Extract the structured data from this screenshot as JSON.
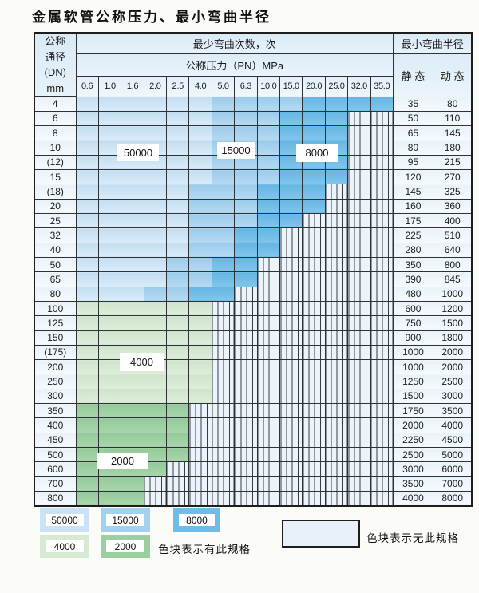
{
  "title": "金属软管公称压力、最小弯曲半径",
  "colors": {
    "blue_light": "#cbe2f4",
    "blue_mid": "#a2d1ef",
    "blue_dark": "#6ebce7",
    "green_light": "#d6e9d2",
    "green_mid": "#9ccf9f",
    "hatch_bg": "#ecf4fb",
    "page_bg": "#fbfcf8"
  },
  "table": {
    "header": {
      "dn_line1": "公称",
      "dn_line2": "通径",
      "dn_line3": "(DN)",
      "dn_line4": "mm",
      "cycles_label": "最少弯曲次数，次",
      "pressure_label": "公称压力（PN）MPa",
      "pressure_values": [
        "0.6",
        "1.0",
        "1.6",
        "2.0",
        "2.5",
        "4.0",
        "5.0",
        "6.3",
        "10.0",
        "15.0",
        "20.0",
        "25.0",
        "32.0",
        "35.0"
      ],
      "radius_label": "最小弯曲半径",
      "static_label": "静 态",
      "dynamic_label": "动 态"
    },
    "cell_codes": {
      "l": "50000",
      "m": "15000",
      "d": "8000",
      "g": "4000",
      "G": "2000",
      "x": "no-spec"
    },
    "rows": [
      {
        "dn": "4",
        "cells": "llllllmmmmdddd",
        "static": "35",
        "dynamic": "80"
      },
      {
        "dn": "6",
        "cells": "llllllmmmdddxx",
        "static": "50",
        "dynamic": "110"
      },
      {
        "dn": "8",
        "cells": "llllllmmmdddxx",
        "static": "65",
        "dynamic": "145"
      },
      {
        "dn": "10",
        "cells": "llllllmmmdddxx",
        "static": "80",
        "dynamic": "180"
      },
      {
        "dn": "(12)",
        "cells": "llllllmmmdddxx",
        "static": "95",
        "dynamic": "215"
      },
      {
        "dn": "15",
        "cells": "llllllmmmdddxx",
        "static": "120",
        "dynamic": "270"
      },
      {
        "dn": "(18)",
        "cells": "lllllmmmdddxxx",
        "static": "145",
        "dynamic": "325"
      },
      {
        "dn": "20",
        "cells": "lllllmmmdddxxx",
        "static": "160",
        "dynamic": "360"
      },
      {
        "dn": "25",
        "cells": "lllllmmmddxxxx",
        "static": "175",
        "dynamic": "400"
      },
      {
        "dn": "32",
        "cells": "lllllmmddxxxxx",
        "static": "225",
        "dynamic": "510"
      },
      {
        "dn": "40",
        "cells": "lllllmmddxxxxx",
        "static": "280",
        "dynamic": "640"
      },
      {
        "dn": "50",
        "cells": "llllmmddxxxxxx",
        "static": "350",
        "dynamic": "800"
      },
      {
        "dn": "65",
        "cells": "llllmmddxxxxxx",
        "static": "390",
        "dynamic": "845"
      },
      {
        "dn": "80",
        "cells": "lllmmddxxxxxxx",
        "static": "480",
        "dynamic": "1000"
      },
      {
        "dn": "100",
        "cells": "ggggggxxxxxxxx",
        "static": "600",
        "dynamic": "1200"
      },
      {
        "dn": "125",
        "cells": "ggggggxxxxxxxx",
        "static": "750",
        "dynamic": "1500"
      },
      {
        "dn": "150",
        "cells": "ggggggxxxxxxxx",
        "static": "900",
        "dynamic": "1800"
      },
      {
        "dn": "(175)",
        "cells": "ggggggxxxxxxxx",
        "static": "1000",
        "dynamic": "2000"
      },
      {
        "dn": "200",
        "cells": "ggggggxxxxxxxx",
        "static": "1000",
        "dynamic": "2000"
      },
      {
        "dn": "250",
        "cells": "ggggggxxxxxxxx",
        "static": "1250",
        "dynamic": "2500"
      },
      {
        "dn": "300",
        "cells": "ggggggxxxxxxxx",
        "static": "1500",
        "dynamic": "3000"
      },
      {
        "dn": "350",
        "cells": "GGGGGxxxxxxxxx",
        "static": "1750",
        "dynamic": "3500"
      },
      {
        "dn": "400",
        "cells": "GGGGGxxxxxxxxx",
        "static": "2000",
        "dynamic": "4000"
      },
      {
        "dn": "450",
        "cells": "GGGGGxxxxxxxxx",
        "static": "2250",
        "dynamic": "4500"
      },
      {
        "dn": "500",
        "cells": "GGGGGxxxxxxxxx",
        "static": "2500",
        "dynamic": "5000"
      },
      {
        "dn": "600",
        "cells": "GGGGxxxxxxxxxx",
        "static": "3000",
        "dynamic": "6000"
      },
      {
        "dn": "700",
        "cells": "GGGxxxxxxxxxxx",
        "static": "3500",
        "dynamic": "7000"
      },
      {
        "dn": "800",
        "cells": "GGGxxxxxxxxxxx",
        "static": "4000",
        "dynamic": "8000"
      }
    ]
  },
  "overlay_labels": [
    {
      "id": "b50000",
      "text": "50000"
    },
    {
      "id": "b15000",
      "text": "15000"
    },
    {
      "id": "b8000",
      "text": "8000"
    },
    {
      "id": "g4000",
      "text": "4000"
    },
    {
      "id": "g2000",
      "text": "2000"
    }
  ],
  "legend": {
    "items": [
      {
        "value": "50000"
      },
      {
        "value": "15000"
      },
      {
        "value": "8000"
      },
      {
        "value": "4000"
      },
      {
        "value": "2000"
      }
    ],
    "has_spec_text": "色块表示有此规格",
    "no_spec_text": "色块表示无此规格"
  }
}
